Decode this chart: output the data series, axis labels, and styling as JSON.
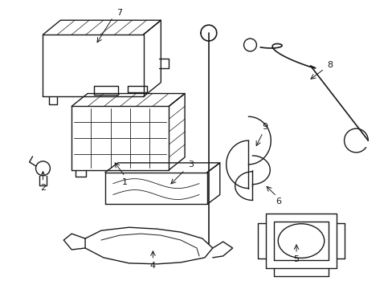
{
  "bg_color": "#ffffff",
  "line_color": "#1a1a1a",
  "line_width": 1.0,
  "figsize": [
    4.89,
    3.6
  ],
  "dpi": 100
}
